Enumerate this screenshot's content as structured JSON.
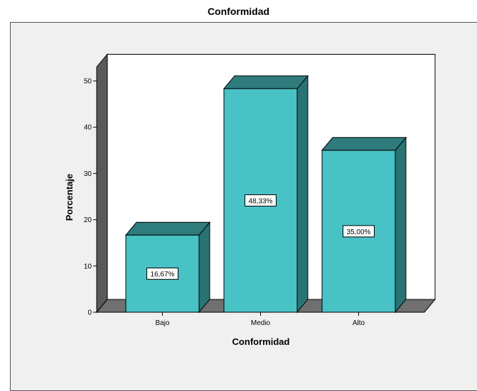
{
  "chart_data": {
    "type": "bar",
    "title": "Conformidad",
    "xlabel": "Conformidad",
    "ylabel": "Porcentaje",
    "categories": [
      "Bajo",
      "Medio",
      "Alto"
    ],
    "values": [
      16.67,
      48.33,
      35.0
    ],
    "data_labels": [
      "16,67%",
      "48,33%",
      "35,00%"
    ],
    "yticks": [
      "0",
      "10",
      "20",
      "30",
      "40",
      "50"
    ],
    "ytick_values": [
      0,
      10,
      20,
      30,
      40,
      50
    ],
    "ylim": [
      0,
      53
    ],
    "grid": false,
    "bar_3d": true,
    "colors": {
      "bar_front": "#48c2c5",
      "bar_top": "#2f7c7d",
      "bar_side": "#2a7374",
      "wall": "#ffffff",
      "left_wall": "#5a5a5a",
      "floor": "#707070",
      "frame_bg": "#f0f0f0"
    }
  }
}
